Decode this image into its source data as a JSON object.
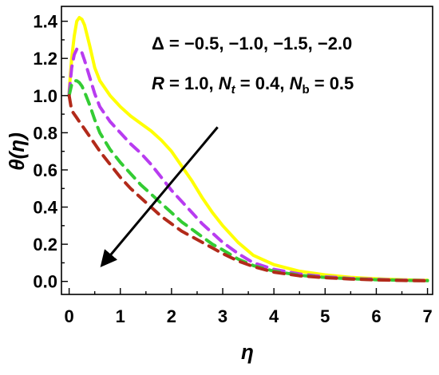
{
  "chart_data": {
    "type": "line",
    "xlabel": "η",
    "ylabel": "θ(η)",
    "xlim": [
      -0.15,
      7.1
    ],
    "ylim": [
      -0.07,
      1.48
    ],
    "xticks": [
      0,
      1,
      2,
      3,
      4,
      5,
      6,
      7
    ],
    "yticks": [
      0.0,
      0.2,
      0.4,
      0.6,
      0.8,
      1.0,
      1.2,
      1.4
    ],
    "grid": false,
    "annotations": {
      "line1": {
        "symbol": "Δ",
        "equals": " = ",
        "values": "−0.5, −1.0, −1.5, −2.0"
      },
      "line2": {
        "r_sym": "R",
        "r_val": " = 1.0, ",
        "nt_sym": "N",
        "nt_sub": "t",
        "nt_val": " = 0.4, ",
        "nb_sym": "N",
        "nb_sub": "b",
        "nb_val": " = 0.5"
      }
    },
    "arrow": {
      "from": [
        2.9,
        0.83
      ],
      "to": [
        0.65,
        0.09
      ]
    },
    "series": [
      {
        "color": "#ffff00",
        "dash": "solid",
        "x": [
          0,
          0.05,
          0.1,
          0.15,
          0.2,
          0.25,
          0.3,
          0.4,
          0.5,
          0.6,
          0.8,
          1.0,
          1.2,
          1.4,
          1.6,
          1.8,
          2.0,
          2.2,
          2.4,
          2.6,
          2.8,
          3.0,
          3.3,
          3.6,
          4.0,
          4.5,
          5.0,
          5.5,
          6.0,
          6.5,
          7.0
        ],
        "y": [
          1.02,
          1.2,
          1.32,
          1.4,
          1.42,
          1.41,
          1.38,
          1.27,
          1.15,
          1.08,
          1.0,
          0.94,
          0.89,
          0.85,
          0.81,
          0.76,
          0.7,
          0.62,
          0.54,
          0.45,
          0.37,
          0.3,
          0.21,
          0.14,
          0.09,
          0.055,
          0.035,
          0.022,
          0.014,
          0.009,
          0.006
        ]
      },
      {
        "color": "#b83cf0",
        "dash": "dashed",
        "x": [
          0,
          0.05,
          0.1,
          0.15,
          0.2,
          0.25,
          0.3,
          0.4,
          0.5,
          0.6,
          0.8,
          1.0,
          1.2,
          1.4,
          1.6,
          1.8,
          2.0,
          2.2,
          2.4,
          2.6,
          2.8,
          3.0,
          3.3,
          3.6,
          4.0,
          4.5,
          5.0,
          5.5,
          6.0,
          6.5,
          7.0
        ],
        "y": [
          1.01,
          1.15,
          1.22,
          1.25,
          1.25,
          1.23,
          1.19,
          1.1,
          1.01,
          0.94,
          0.86,
          0.8,
          0.74,
          0.69,
          0.63,
          0.56,
          0.49,
          0.43,
          0.37,
          0.31,
          0.26,
          0.21,
          0.15,
          0.1,
          0.065,
          0.04,
          0.025,
          0.016,
          0.011,
          0.007,
          0.005
        ]
      },
      {
        "color": "#33cc33",
        "dash": "dashed",
        "x": [
          0,
          0.05,
          0.1,
          0.15,
          0.2,
          0.25,
          0.3,
          0.4,
          0.5,
          0.6,
          0.8,
          1.0,
          1.2,
          1.4,
          1.6,
          1.8,
          2.0,
          2.2,
          2.4,
          2.6,
          2.8,
          3.0,
          3.3,
          3.6,
          4.0,
          4.5,
          5.0,
          5.5,
          6.0,
          6.5,
          7.0
        ],
        "y": [
          1.0,
          1.06,
          1.08,
          1.08,
          1.07,
          1.05,
          1.02,
          0.95,
          0.87,
          0.8,
          0.71,
          0.64,
          0.58,
          0.52,
          0.47,
          0.42,
          0.37,
          0.32,
          0.28,
          0.24,
          0.2,
          0.17,
          0.12,
          0.085,
          0.055,
          0.033,
          0.021,
          0.014,
          0.009,
          0.006,
          0.004
        ]
      },
      {
        "color": "#b22a1a",
        "dash": "dashed",
        "x": [
          0,
          0.05,
          0.1,
          0.15,
          0.2,
          0.3,
          0.4,
          0.5,
          0.6,
          0.8,
          1.0,
          1.2,
          1.4,
          1.6,
          1.8,
          2.0,
          2.2,
          2.4,
          2.6,
          2.8,
          3.0,
          3.3,
          3.6,
          4.0,
          4.5,
          5.0,
          5.5,
          6.0,
          6.5,
          7.0
        ],
        "y": [
          1.0,
          0.92,
          0.9,
          0.88,
          0.86,
          0.82,
          0.78,
          0.74,
          0.7,
          0.63,
          0.56,
          0.5,
          0.45,
          0.4,
          0.35,
          0.31,
          0.27,
          0.24,
          0.21,
          0.18,
          0.15,
          0.11,
          0.08,
          0.05,
          0.03,
          0.02,
          0.013,
          0.008,
          0.005,
          0.003
        ]
      }
    ]
  }
}
